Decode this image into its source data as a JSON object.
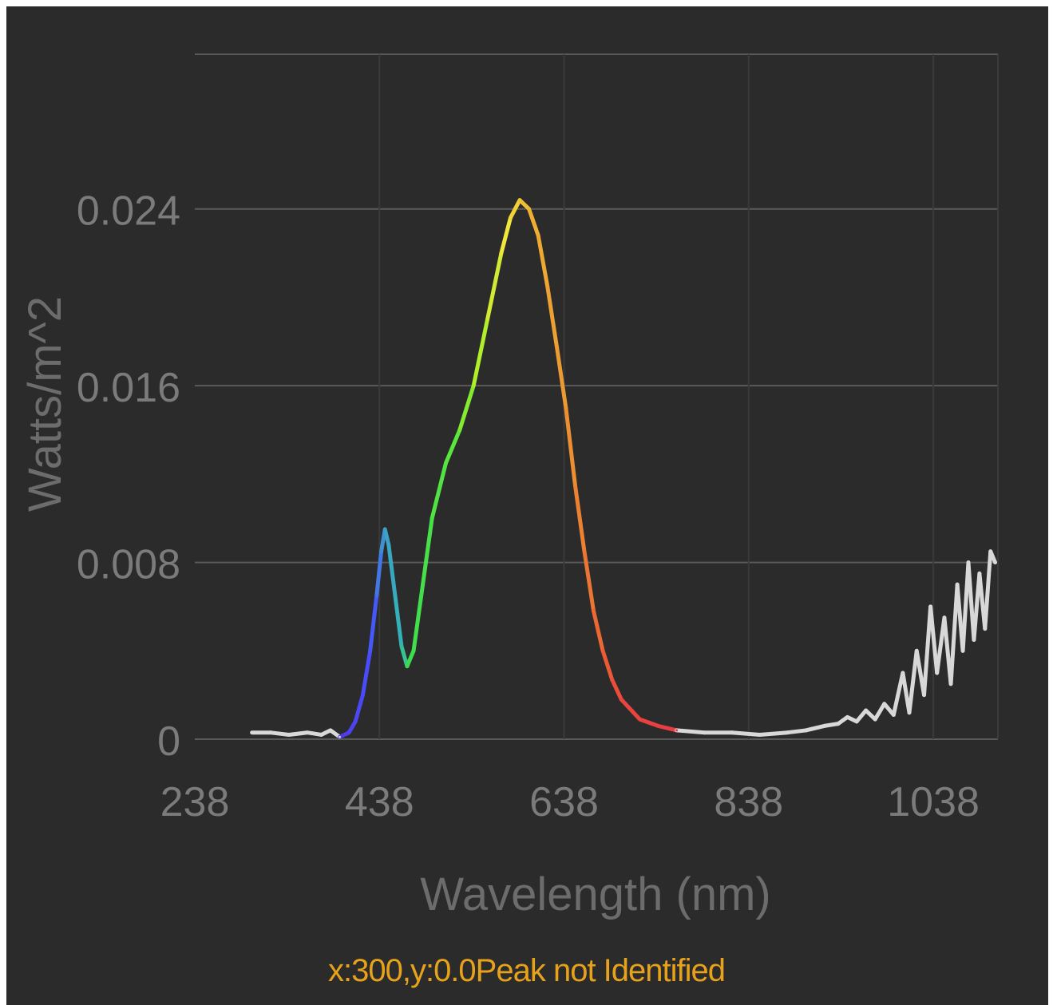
{
  "colors": {
    "background": "#2b2b2b",
    "grid": "#5a5a5a",
    "tick_text": "#7b7b7b",
    "readout": "#e6a21b"
  },
  "chart_data": {
    "type": "line",
    "xlabel": "Wavelength (nm)",
    "ylabel": "Watts/m^2",
    "x_ticks": [
      "238",
      "438",
      "638",
      "838",
      "1038"
    ],
    "y_ticks": [
      "0",
      "0.008",
      "0.016",
      "0.024"
    ],
    "xlim": [
      238,
      1108
    ],
    "ylim": [
      0,
      0.031
    ],
    "grid": true,
    "series": [
      {
        "color_mode": "spectrum",
        "points": [
          [
            300,
            0.0003
          ],
          [
            320,
            0.0003
          ],
          [
            340,
            0.0002
          ],
          [
            360,
            0.0003
          ],
          [
            375,
            0.0002
          ],
          [
            385,
            0.0004
          ],
          [
            395,
            0.0001
          ],
          [
            405,
            0.0003
          ],
          [
            412,
            0.0008
          ],
          [
            420,
            0.002
          ],
          [
            428,
            0.004
          ],
          [
            435,
            0.0065
          ],
          [
            440,
            0.0085
          ],
          [
            444,
            0.0095
          ],
          [
            448,
            0.0088
          ],
          [
            455,
            0.0065
          ],
          [
            462,
            0.0042
          ],
          [
            468,
            0.0033
          ],
          [
            475,
            0.004
          ],
          [
            485,
            0.007
          ],
          [
            495,
            0.01
          ],
          [
            510,
            0.0125
          ],
          [
            525,
            0.014
          ],
          [
            540,
            0.016
          ],
          [
            555,
            0.019
          ],
          [
            570,
            0.022
          ],
          [
            580,
            0.0236
          ],
          [
            590,
            0.0244
          ],
          [
            600,
            0.024
          ],
          [
            610,
            0.0228
          ],
          [
            620,
            0.0205
          ],
          [
            630,
            0.0178
          ],
          [
            640,
            0.015
          ],
          [
            650,
            0.0115
          ],
          [
            660,
            0.0085
          ],
          [
            670,
            0.0058
          ],
          [
            680,
            0.004
          ],
          [
            690,
            0.0027
          ],
          [
            700,
            0.0018
          ],
          [
            720,
            0.0009
          ],
          [
            740,
            0.0006
          ],
          [
            760,
            0.0004
          ],
          [
            790,
            0.0003
          ],
          [
            820,
            0.0003
          ],
          [
            850,
            0.0002
          ],
          [
            880,
            0.0003
          ],
          [
            900,
            0.0004
          ],
          [
            920,
            0.0006
          ],
          [
            935,
            0.0007
          ],
          [
            945,
            0.001
          ],
          [
            955,
            0.0008
          ],
          [
            965,
            0.0013
          ],
          [
            975,
            0.0009
          ],
          [
            985,
            0.0016
          ],
          [
            995,
            0.0011
          ],
          [
            1005,
            0.003
          ],
          [
            1012,
            0.0012
          ],
          [
            1020,
            0.004
          ],
          [
            1028,
            0.002
          ],
          [
            1035,
            0.006
          ],
          [
            1042,
            0.003
          ],
          [
            1050,
            0.0055
          ],
          [
            1057,
            0.0025
          ],
          [
            1064,
            0.007
          ],
          [
            1070,
            0.004
          ],
          [
            1076,
            0.008
          ],
          [
            1082,
            0.0045
          ],
          [
            1088,
            0.0075
          ],
          [
            1094,
            0.005
          ],
          [
            1100,
            0.0085
          ],
          [
            1105,
            0.008
          ]
        ]
      }
    ]
  },
  "readout": {
    "text": "x:300,y:0.0Peak not Identified"
  }
}
